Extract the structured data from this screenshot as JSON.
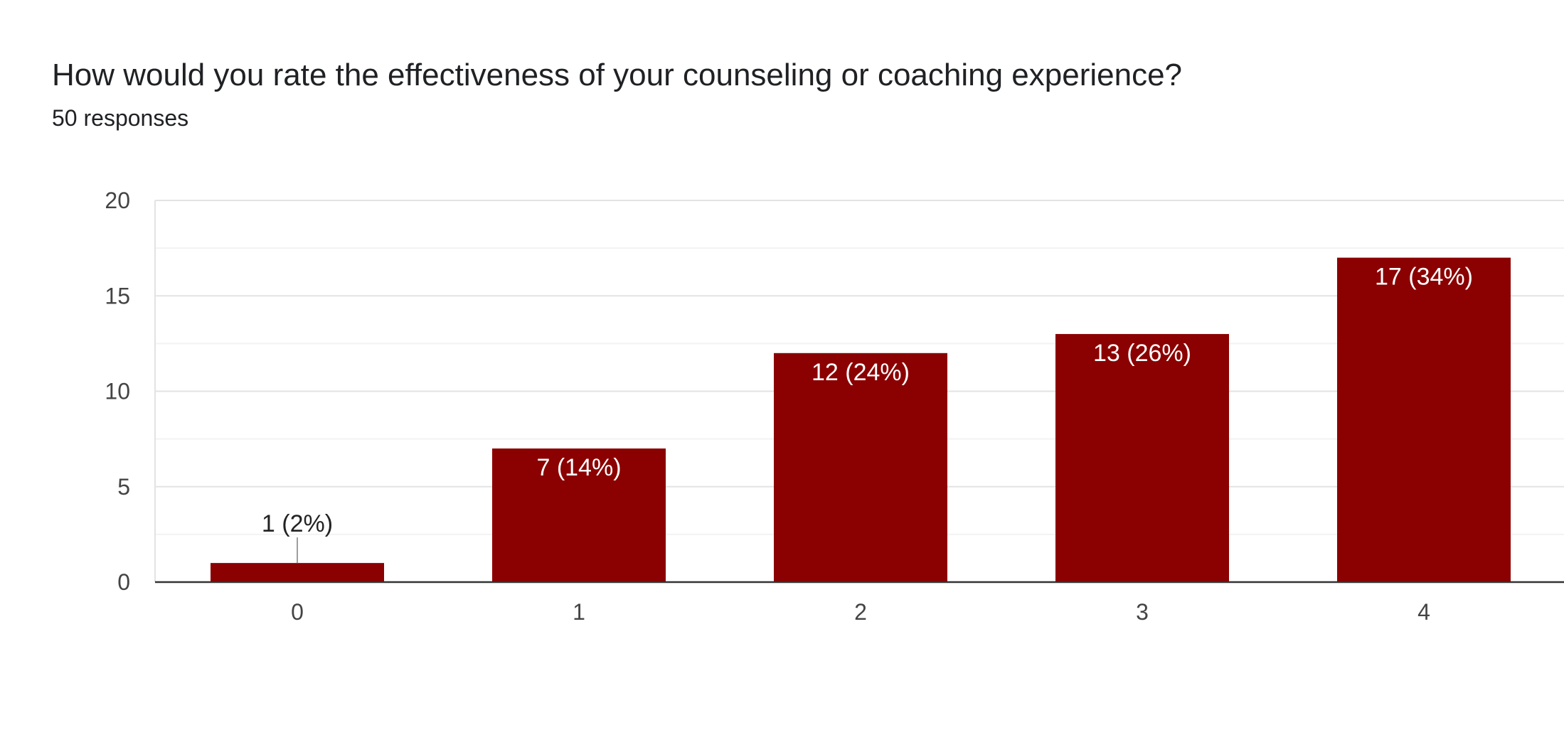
{
  "question": {
    "title": "How would you rate the effectiveness of your counseling or coaching experience?",
    "responses": "50 responses"
  },
  "colors": {
    "bar": "#8b0000",
    "grid_major": "#e3e3e3",
    "grid_minor": "#f3f3f3",
    "baseline": "#333333",
    "label_leader": "#9e9e9e"
  },
  "chart_data": {
    "type": "bar",
    "title": "How would you rate the effectiveness of your counseling or coaching experience?",
    "subtitle": "50 responses",
    "categories": [
      "0",
      "1",
      "2",
      "3",
      "4"
    ],
    "values": [
      1,
      7,
      12,
      13,
      17
    ],
    "data_labels": [
      "1 (2%)",
      "7 (14%)",
      "12 (24%)",
      "13 (26%)",
      "17 (34%)"
    ],
    "ylim": [
      0,
      20
    ],
    "yticks": [
      0,
      5,
      10,
      15,
      20
    ],
    "ytick_labels": [
      "0",
      "5",
      "10",
      "15",
      "20"
    ],
    "xlabel": "",
    "ylabel": "",
    "grid": true,
    "legend": "none"
  }
}
